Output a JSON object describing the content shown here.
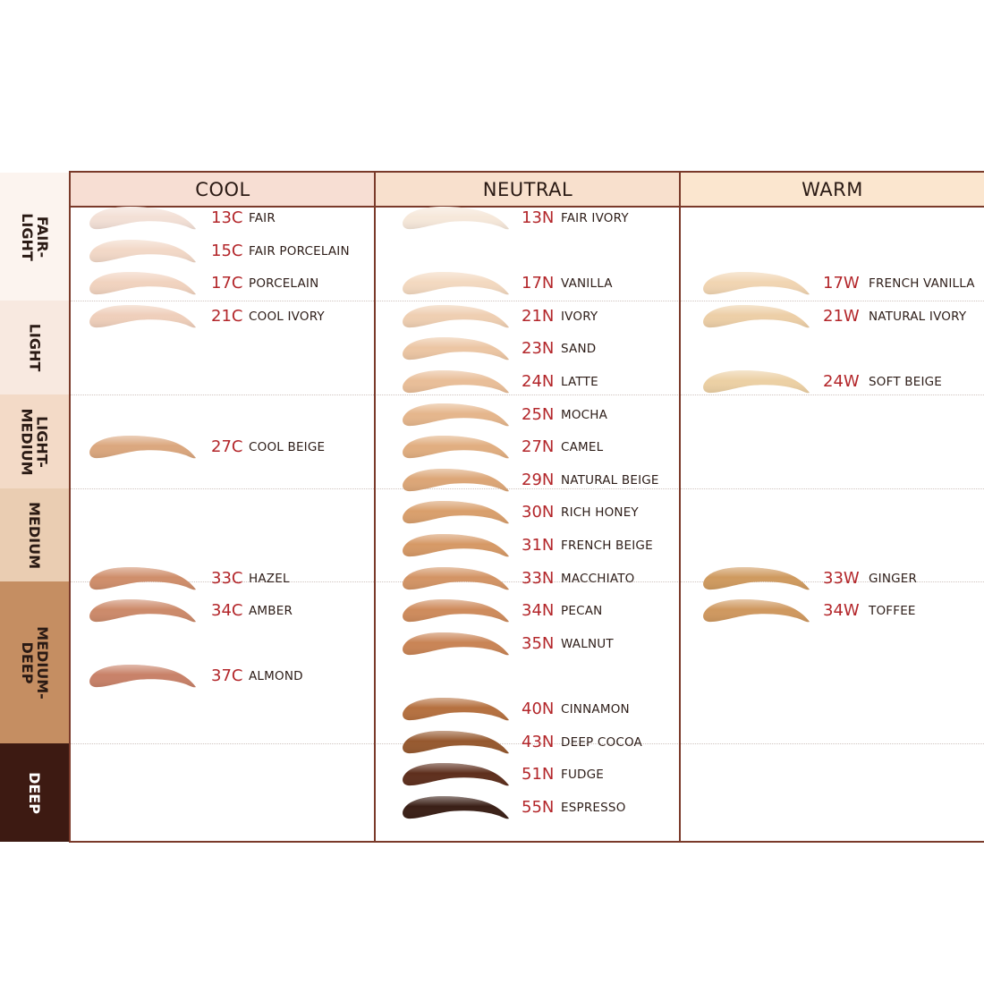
{
  "columns": [
    {
      "label": "COOL",
      "color": "#f7ded3"
    },
    {
      "label": "NEUTRAL",
      "color": "#f8e0cd"
    },
    {
      "label": "WARM",
      "color": "#fbe6cf"
    }
  ],
  "rows": [
    {
      "lines": [
        "FAIR-",
        "LIGHT"
      ],
      "color": "#fcf4ef",
      "text_color": "#2a1a14"
    },
    {
      "lines": [
        "LIGHT"
      ],
      "color": "#f8e9e0",
      "text_color": "#2a1a14"
    },
    {
      "lines": [
        "LIGHT-",
        "MEDIUM"
      ],
      "color": "#f3dac7",
      "text_color": "#2a1a14"
    },
    {
      "lines": [
        "MEDIUM"
      ],
      "color": "#eacdb2",
      "text_color": "#2a1a14"
    },
    {
      "lines": [
        "MEDIUM-",
        "DEEP"
      ],
      "color": "#c58e62",
      "text_color": "#2a1a14"
    },
    {
      "lines": [
        "DEEP"
      ],
      "color": "#3d1a12",
      "text_color": "#ffffff"
    }
  ],
  "shades": [
    {
      "code": "13C",
      "name": "FAIR",
      "col": 0,
      "slot": 0,
      "color": "#f3e0d6"
    },
    {
      "code": "15C",
      "name": "FAIR PORCELAIN",
      "col": 0,
      "slot": 1,
      "color": "#f2d8c7"
    },
    {
      "code": "17C",
      "name": "PORCELAIN",
      "col": 0,
      "slot": 2,
      "color": "#f1d3bf"
    },
    {
      "code": "21C",
      "name": "COOL IVORY",
      "col": 0,
      "slot": 3,
      "color": "#efcfbb"
    },
    {
      "code": "27C",
      "name": "COOL BEIGE",
      "col": 0,
      "slot": 7,
      "color": "#dba77e"
    },
    {
      "code": "33C",
      "name": "HAZEL",
      "col": 0,
      "slot": 11,
      "color": "#cf8e6b"
    },
    {
      "code": "34C",
      "name": "AMBER",
      "col": 0,
      "slot": 12,
      "color": "#cc8a6a"
    },
    {
      "code": "37C",
      "name": "ALMOND",
      "col": 0,
      "slot": 14,
      "color": "#c88168"
    },
    {
      "code": "13N",
      "name": "FAIR IVORY",
      "col": 1,
      "slot": 0,
      "color": "#f6e8da"
    },
    {
      "code": "17N",
      "name": "VANILLA",
      "col": 1,
      "slot": 2,
      "color": "#f3d9c0"
    },
    {
      "code": "21N",
      "name": "IVORY",
      "col": 1,
      "slot": 3,
      "color": "#efcfb2"
    },
    {
      "code": "23N",
      "name": "SAND",
      "col": 1,
      "slot": 4,
      "color": "#ecc6a4"
    },
    {
      "code": "24N",
      "name": "LATTE",
      "col": 1,
      "slot": 5,
      "color": "#e9be98"
    },
    {
      "code": "25N",
      "name": "MOCHA",
      "col": 1,
      "slot": 6,
      "color": "#e5b68c"
    },
    {
      "code": "27N",
      "name": "CAMEL",
      "col": 1,
      "slot": 7,
      "color": "#e1ae80"
    },
    {
      "code": "29N",
      "name": "NATURAL BEIGE",
      "col": 1,
      "slot": 8,
      "color": "#dca677"
    },
    {
      "code": "30N",
      "name": "RICH HONEY",
      "col": 1,
      "slot": 9,
      "color": "#d99f6c"
    },
    {
      "code": "31N",
      "name": "FRENCH BEIGE",
      "col": 1,
      "slot": 10,
      "color": "#d69966"
    },
    {
      "code": "33N",
      "name": "MACCHIATO",
      "col": 1,
      "slot": 11,
      "color": "#d39465"
    },
    {
      "code": "34N",
      "name": "PECAN",
      "col": 1,
      "slot": 12,
      "color": "#ce8b5c"
    },
    {
      "code": "35N",
      "name": "WALNUT",
      "col": 1,
      "slot": 13,
      "color": "#c98455"
    },
    {
      "code": "40N",
      "name": "CINNAMON",
      "col": 1,
      "slot": 15,
      "color": "#b5703f"
    },
    {
      "code": "43N",
      "name": "DEEP COCOA",
      "col": 1,
      "slot": 16,
      "color": "#96592f"
    },
    {
      "code": "51N",
      "name": "FUDGE",
      "col": 1,
      "slot": 17,
      "color": "#5e2f1d"
    },
    {
      "code": "55N",
      "name": "ESPRESSO",
      "col": 1,
      "slot": 18,
      "color": "#3a1f16"
    },
    {
      "code": "17W",
      "name": "FRENCH VANILLA",
      "col": 2,
      "slot": 2,
      "color": "#f1d5b2"
    },
    {
      "code": "21W",
      "name": "NATURAL IVORY",
      "col": 2,
      "slot": 3,
      "color": "#edcfa7"
    },
    {
      "code": "24W",
      "name": "SOFT BEIGE",
      "col": 2,
      "slot": 5,
      "color": "#ecd0a4"
    },
    {
      "code": "33W",
      "name": "GINGER",
      "col": 2,
      "slot": 11,
      "color": "#cf9a5f"
    },
    {
      "code": "34W",
      "name": "TOFFEE",
      "col": 2,
      "slot": 12,
      "color": "#cf985f"
    }
  ]
}
